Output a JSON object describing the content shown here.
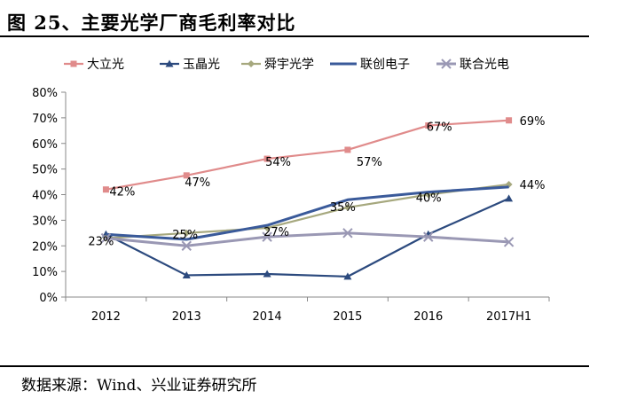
{
  "header": {
    "title": "图 25、主要光学厂商毛利率对比"
  },
  "footer": {
    "source": "数据来源：Wind、兴业证券研究所"
  },
  "chart_data": {
    "type": "line",
    "title": "",
    "xlabel": "",
    "ylabel": "",
    "categories": [
      "2012",
      "2013",
      "2014",
      "2015",
      "2016",
      "2017H1"
    ],
    "ylim": [
      0,
      80
    ],
    "yticks": [
      "0%",
      "10%",
      "20%",
      "30%",
      "40%",
      "50%",
      "60%",
      "70%",
      "80%"
    ],
    "legend_position": "top",
    "grid": false,
    "series": [
      {
        "name": "大立光",
        "color": "#E08B8B",
        "marker": "square",
        "values": [
          42,
          47.5,
          54,
          57.5,
          67,
          69
        ],
        "labels": [
          "42%",
          "47%",
          "54%",
          "57%",
          "67%",
          "69%"
        ]
      },
      {
        "name": "玉晶光",
        "color": "#2C4A7E",
        "marker": "triangle",
        "values": [
          24.5,
          8.5,
          9,
          8,
          24.5,
          38.5
        ],
        "labels": []
      },
      {
        "name": "舜宇光学",
        "color": "#A6A87E",
        "marker": "diamond",
        "values": [
          23,
          25,
          27,
          35,
          40,
          44
        ],
        "labels": [
          "23%",
          "25%",
          "27%",
          "35%",
          "40%",
          "44%"
        ]
      },
      {
        "name": "联创电子",
        "color": "#3A5A9A",
        "marker": "none",
        "values": [
          24.5,
          22.5,
          28,
          38,
          41,
          43
        ],
        "labels": []
      },
      {
        "name": "联合光电",
        "color": "#9A98B4",
        "marker": "x",
        "values": [
          23,
          20,
          23.5,
          25,
          23.5,
          21.5
        ],
        "labels": []
      }
    ]
  }
}
